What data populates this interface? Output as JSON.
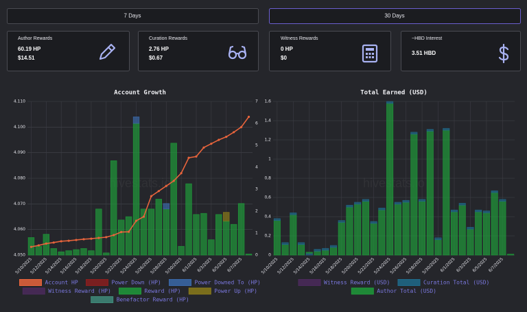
{
  "buttons": [
    "7 Days",
    "30 Days"
  ],
  "cards": [
    {
      "label": "Author Rewards",
      "lines": [
        "60.19 HP",
        "$14.51"
      ]
    },
    {
      "label": "Curation Rewards",
      "lines": [
        "2.76 HP",
        "$0.67"
      ]
    },
    {
      "label": "Witness Rewards",
      "lines": [
        "0 HP",
        "$0"
      ]
    },
    {
      "label": "~HBD Interest",
      "lines": [
        "3.51 HBD"
      ]
    }
  ],
  "chart_data": [
    {
      "type": "bar",
      "title": "Account Growth",
      "watermark": "hivestats.io",
      "categories": [
        "5/10/2025",
        null,
        "5/12/2025",
        null,
        "5/14/2025",
        null,
        "5/16/2025",
        null,
        "5/18/2025",
        null,
        "5/20/2025",
        null,
        "5/22/2025",
        null,
        "5/24/2025",
        null,
        "5/26/2025",
        null,
        "5/28/2025",
        null,
        "5/30/2025",
        null,
        "6/1/2025",
        null,
        "6/3/2025",
        null,
        "6/5/2025",
        null,
        "6/7/2025",
        null
      ],
      "ylim": [
        4.05,
        4.11
      ],
      "yticks": [
        {
          "value": 4.05,
          "label": "4.050"
        },
        {
          "value": 4.06,
          "label": "4.060"
        },
        {
          "value": 4.07,
          "label": "4.070"
        },
        {
          "value": 4.08,
          "label": "4.080"
        },
        {
          "value": 4.09,
          "label": "4.090"
        },
        {
          "value": 4.1,
          "label": "4.100"
        },
        {
          "value": 4.11,
          "label": "4.110"
        }
      ],
      "y2lim": [
        0,
        7
      ],
      "y2ticks": [
        0,
        1,
        2,
        3,
        4,
        5,
        6,
        7
      ],
      "grid": true,
      "series": [
        {
          "name": "Account HP",
          "type": "line",
          "color": "#e8643c",
          "values": [
            4.0532,
            4.0538,
            4.0545,
            4.0549,
            4.0554,
            4.0556,
            4.0559,
            4.0562,
            4.0564,
            4.0567,
            4.057,
            4.0578,
            4.059,
            4.0591,
            4.0634,
            4.065,
            4.073,
            4.075,
            4.077,
            4.079,
            4.082,
            4.088,
            4.0885,
            4.092,
            4.0935,
            4.095,
            4.0962,
            4.098,
            4.1,
            4.104
          ]
        },
        {
          "name": "Power Down (HP)",
          "axis": "y2",
          "color": "#8a1e1e",
          "values": [
            0,
            0,
            0,
            0,
            0,
            0,
            0,
            0,
            0,
            0,
            0,
            0,
            0,
            0,
            0,
            0,
            0,
            0,
            0,
            0,
            0,
            0,
            0,
            0,
            0,
            0,
            0,
            0,
            0,
            0
          ]
        },
        {
          "name": "Power Downed To (HP)",
          "axis": "y2",
          "color": "#3a68a8",
          "values": [
            0,
            0,
            0,
            0,
            0,
            0,
            0,
            0,
            0,
            0,
            0,
            0,
            0,
            0,
            0.3,
            0,
            0,
            0,
            0.25,
            0,
            0,
            0,
            0,
            0,
            0,
            0,
            0,
            0,
            0,
            0
          ]
        },
        {
          "name": "Witness Reward (HP)",
          "axis": "y2",
          "color": "#4b2a5c",
          "values": [
            0,
            0,
            0,
            0,
            0,
            0,
            0,
            0,
            0,
            0,
            0,
            0,
            0,
            0,
            0,
            0,
            0,
            0,
            0,
            0,
            0,
            0,
            0,
            0,
            0,
            0,
            0,
            0,
            0,
            0
          ]
        },
        {
          "name": "Reward (HP)",
          "axis": "y2",
          "color": "#1f9a3a",
          "values": [
            0.8,
            0.4,
            0.95,
            0.3,
            0.15,
            0.2,
            0.25,
            0.3,
            0.2,
            2.1,
            0.1,
            4.3,
            1.6,
            1.75,
            6.0,
            2.1,
            2.1,
            2.55,
            2.1,
            5.1,
            0.4,
            3.25,
            1.85,
            1.9,
            0.7,
            1.85,
            1.55,
            1.4,
            2.35,
            0.05
          ]
        },
        {
          "name": "Power Up (HP)",
          "axis": "y2",
          "color": "#8a7a1a",
          "values": [
            0,
            0,
            0,
            0,
            0,
            0,
            0,
            0,
            0,
            0,
            0,
            0,
            0,
            0,
            0,
            0,
            0,
            0,
            0,
            0,
            0,
            0,
            0,
            0,
            0,
            0,
            0.4,
            0,
            0,
            0
          ]
        },
        {
          "name": "Benefactor Reward (HP)",
          "axis": "y2",
          "color": "#3f8a7a",
          "values": [
            0,
            0,
            0,
            0,
            0,
            0,
            0,
            0,
            0,
            0,
            0,
            0,
            0,
            0,
            0,
            0,
            0,
            0,
            0,
            0,
            0,
            0,
            0,
            0,
            0,
            0,
            0,
            0,
            0,
            0
          ]
        }
      ]
    },
    {
      "type": "bar",
      "title": "Total Earned (USD)",
      "watermark": "hivestats.io",
      "categories": [
        "5/10/2025",
        null,
        "5/12/2025",
        null,
        "5/14/2025",
        null,
        "5/16/2025",
        null,
        "5/18/2025",
        null,
        "5/20/2025",
        null,
        "5/22/2025",
        null,
        "5/24/2025",
        null,
        "5/26/2025",
        null,
        "5/28/2025",
        null,
        "5/30/2025",
        null,
        "6/1/2025",
        null,
        "6/3/2025",
        null,
        "6/5/2025",
        null,
        "6/7/2025",
        null
      ],
      "ylim": [
        0,
        1.6
      ],
      "yticks": [
        0,
        {
          "value": 0.2,
          "label": "0,2"
        },
        {
          "value": 0.4,
          "label": "0,4"
        },
        {
          "value": 0.6,
          "label": "0,6"
        },
        {
          "value": 0.8,
          "label": "0,8"
        },
        {
          "value": 1,
          "label": "1"
        },
        {
          "value": 1.2,
          "label": "1,2"
        },
        {
          "value": 1.4,
          "label": "1,4"
        },
        {
          "value": 1.6,
          "label": "1,6"
        }
      ],
      "grid": true,
      "series": [
        {
          "name": "Witness Reward (USD)",
          "color": "#4b2a5c",
          "values": [
            0,
            0,
            0,
            0,
            0,
            0,
            0,
            0,
            0,
            0,
            0,
            0,
            0,
            0,
            0,
            0,
            0,
            0,
            0,
            0,
            0,
            0,
            0,
            0,
            0,
            0,
            0,
            0,
            0,
            0
          ]
        },
        {
          "name": "Curation Total (USD)",
          "color": "#1f6a8a",
          "values": [
            0.02,
            0.02,
            0.02,
            0.02,
            0.02,
            0.02,
            0.02,
            0.02,
            0.02,
            0.02,
            0.02,
            0.02,
            0.02,
            0.02,
            0.02,
            0.02,
            0.02,
            0.02,
            0.02,
            0.02,
            0.02,
            0.02,
            0.02,
            0.02,
            0.02,
            0.02,
            0.02,
            0.02,
            0.02,
            0
          ]
        },
        {
          "name": "Author Total (USD)",
          "color": "#1f9a3a",
          "values": [
            0.36,
            0.11,
            0.42,
            0.11,
            0.01,
            0.04,
            0.05,
            0.08,
            0.34,
            0.5,
            0.53,
            0.56,
            0.33,
            0.47,
            1.58,
            0.53,
            0.55,
            1.26,
            0.56,
            1.29,
            0.16,
            1.3,
            0.45,
            0.52,
            0.27,
            0.45,
            0.44,
            0.65,
            0.56,
            0.01
          ]
        }
      ]
    }
  ]
}
